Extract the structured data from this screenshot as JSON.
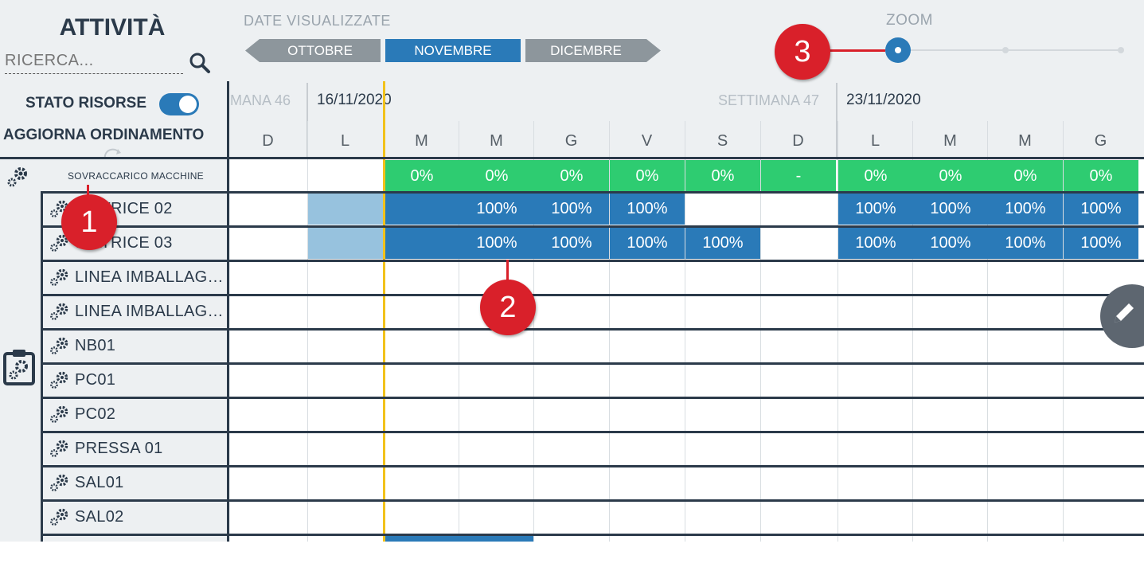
{
  "sidebar": {
    "title": "ATTIVITÀ",
    "search_placeholder": "RICERCA...",
    "stato_risorse_label": "STATO RISORSE",
    "stato_risorse_on": true,
    "aggiorna_label": "AGGIORNA ORDINAMENTO"
  },
  "date_nav": {
    "label": "DATE VISUALIZZATE",
    "prev_month": "OTTOBRE",
    "current_month": "NOVEMBRE",
    "next_month": "DICEMBRE"
  },
  "zoom": {
    "label": "ZOOM",
    "level": 0,
    "steps": 3
  },
  "weeks": {
    "week46_partial": "MANA 46",
    "week46_date": "16/11/2020",
    "week47_label": "SETTIMANA 47",
    "week47_date": "23/11/2020"
  },
  "days": [
    "D",
    "L",
    "M",
    "M",
    "G",
    "V",
    "S",
    "D",
    "L",
    "M",
    "M",
    "G"
  ],
  "overload": {
    "label": "SOVRACCARICO MACCHINE",
    "values": [
      "",
      "",
      "0%",
      "0%",
      "0%",
      "0%",
      "0%",
      "-",
      "0%",
      "0%",
      "0%",
      "0%"
    ]
  },
  "resources": [
    {
      "name": "…ATRICE 02",
      "cells": [
        "",
        "light",
        "blue",
        "100%",
        "100%",
        "100%",
        "",
        "",
        "100%",
        "100%",
        "100%",
        "100%"
      ]
    },
    {
      "name": "…ATRICE 03",
      "cells": [
        "",
        "light",
        "blue",
        "100%",
        "100%",
        "100%",
        "100%",
        "",
        "100%",
        "100%",
        "100%",
        "100%"
      ]
    },
    {
      "name": "LINEA IMBALLAG…"
    },
    {
      "name": "LINEA IMBALLAG…"
    },
    {
      "name": "NB01"
    },
    {
      "name": "PC01"
    },
    {
      "name": "PC02"
    },
    {
      "name": "PRESSA 01"
    },
    {
      "name": "SAL01"
    },
    {
      "name": "SAL02"
    }
  ],
  "callouts": [
    "1",
    "2",
    "3"
  ],
  "colors": {
    "primary_blue": "#2a7ab8",
    "light_blue": "#97c2de",
    "green": "#2ecc71",
    "today_line": "#f2c21b",
    "callout_red": "#d9202a",
    "frame": "#2b3a4a"
  }
}
